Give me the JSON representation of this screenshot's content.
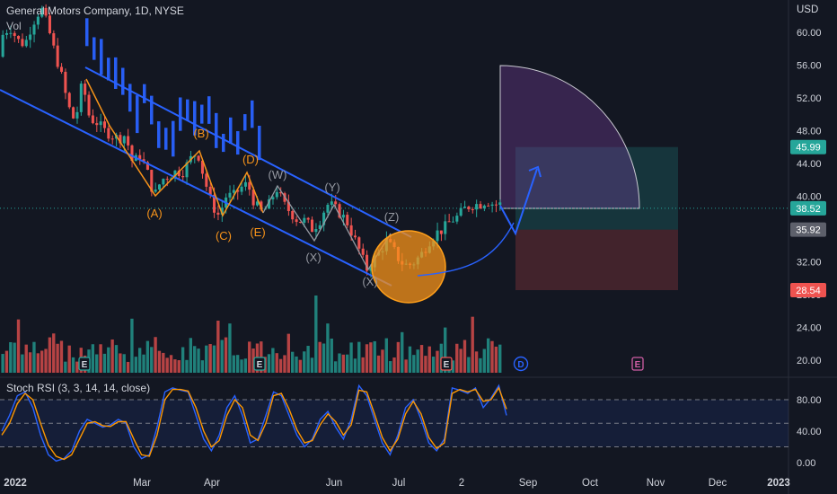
{
  "header": {
    "title": "General Motors Company, 1D, NYSE",
    "volume_label": "Vol",
    "currency": "USD"
  },
  "chart_data": [
    {
      "type": "candlestick",
      "title": "General Motors Company, 1D, NYSE",
      "y_unit": "USD",
      "ylim": [
        17.5,
        64
      ],
      "y_ticks": [
        20.0,
        24.0,
        28.0,
        32.0,
        36.0,
        40.0,
        44.0,
        48.0,
        52.0,
        56.0,
        60.0
      ],
      "x_ticks": [
        "2022",
        "Mar",
        "Apr",
        "Jun",
        "Jul",
        "2",
        "Sep",
        "Oct",
        "Nov",
        "Dec",
        "2023"
      ],
      "price_path": [
        [
          0,
          57
        ],
        [
          6,
          60
        ],
        [
          14,
          60.5
        ],
        [
          22,
          59
        ],
        [
          30,
          58.5
        ],
        [
          38,
          61
        ],
        [
          48,
          63
        ],
        [
          56,
          60.5
        ],
        [
          62,
          58
        ],
        [
          70,
          55
        ],
        [
          78,
          51
        ],
        [
          86,
          49
        ],
        [
          94,
          54
        ],
        [
          102,
          49.5
        ],
        [
          110,
          49
        ],
        [
          118,
          48
        ],
        [
          126,
          47.5
        ],
        [
          134,
          47
        ],
        [
          142,
          47.5
        ],
        [
          150,
          44
        ],
        [
          158,
          45
        ],
        [
          166,
          43
        ],
        [
          174,
          40
        ],
        [
          182,
          42
        ],
        [
          190,
          42.5
        ],
        [
          198,
          43
        ],
        [
          206,
          43
        ],
        [
          214,
          44.5
        ],
        [
          222,
          45.5
        ],
        [
          230,
          42
        ],
        [
          238,
          39
        ],
        [
          246,
          37.6
        ],
        [
          254,
          40
        ],
        [
          262,
          40
        ],
        [
          270,
          41
        ],
        [
          278,
          41.5
        ],
        [
          286,
          39
        ],
        [
          294,
          38
        ],
        [
          302,
          39
        ],
        [
          310,
          41
        ],
        [
          318,
          39
        ],
        [
          326,
          38
        ],
        [
          334,
          37
        ],
        [
          342,
          37
        ],
        [
          350,
          36
        ],
        [
          358,
          37
        ],
        [
          366,
          39
        ],
        [
          372,
          38.8
        ],
        [
          380,
          38
        ],
        [
          388,
          37
        ],
        [
          396,
          35
        ],
        [
          404,
          33
        ],
        [
          410,
          31
        ],
        [
          416,
          32
        ],
        [
          424,
          33
        ],
        [
          432,
          34.5
        ],
        [
          440,
          33.5
        ],
        [
          448,
          32
        ],
        [
          456,
          31.5
        ],
        [
          464,
          32
        ],
        [
          472,
          33
        ],
        [
          480,
          34.5
        ],
        [
          488,
          35.5
        ],
        [
          496,
          36
        ],
        [
          504,
          37
        ],
        [
          512,
          37.5
        ],
        [
          520,
          38.5
        ],
        [
          528,
          39
        ],
        [
          536,
          39
        ],
        [
          544,
          39.5
        ],
        [
          552,
          39
        ],
        [
          560,
          39
        ]
      ],
      "candle_days": 128,
      "labels": {
        "price_tags": [
          45.99,
          38.52,
          35.92,
          28.54
        ],
        "current_price": 38.52
      }
    },
    {
      "type": "line",
      "title": "Stoch RSI (3, 3, 14, 14, close)",
      "ylim": [
        -8,
        110
      ],
      "y_ticks": [
        0.0,
        40.0,
        80.0
      ],
      "bands": {
        "upper": 80,
        "middle": 50,
        "lower": 20
      },
      "series": [
        {
          "color": "#2962ff",
          "values": [
            40,
            60,
            85,
            90,
            70,
            35,
            10,
            2,
            5,
            15,
            40,
            55,
            50,
            45,
            48,
            55,
            50,
            20,
            5,
            10,
            45,
            90,
            95,
            92,
            90,
            60,
            30,
            15,
            35,
            70,
            85,
            60,
            25,
            30,
            60,
            90,
            85,
            60,
            35,
            20,
            30,
            55,
            65,
            45,
            30,
            55,
            98,
            85,
            55,
            25,
            10,
            35,
            70,
            80,
            55,
            25,
            15,
            30,
            95,
            92,
            88,
            95,
            70,
            82,
            98,
            60
          ]
        },
        {
          "color": "#ff9800",
          "values": [
            35,
            50,
            75,
            88,
            80,
            50,
            22,
            8,
            4,
            10,
            30,
            50,
            52,
            47,
            46,
            52,
            52,
            30,
            10,
            8,
            35,
            80,
            93,
            93,
            91,
            70,
            40,
            20,
            28,
            60,
            80,
            70,
            35,
            28,
            50,
            85,
            88,
            68,
            42,
            25,
            28,
            48,
            62,
            52,
            35,
            48,
            92,
            90,
            62,
            32,
            15,
            30,
            62,
            78,
            62,
            32,
            18,
            25,
            88,
            93,
            90,
            93,
            78,
            80,
            95,
            68
          ]
        }
      ]
    }
  ],
  "x_axis": {
    "ticks": [
      "2022",
      "Mar",
      "Apr",
      "Jun",
      "Jul",
      "2",
      "Sep",
      "Oct",
      "Nov",
      "Dec",
      "2023"
    ]
  },
  "price_axis": {
    "ticks": [
      "60.00",
      "56.00",
      "52.00",
      "48.00",
      "44.00",
      "40.00",
      "36.00",
      "32.00",
      "28.00",
      "24.00",
      "20.00"
    ]
  },
  "price_tags": {
    "target": "45.99",
    "last": "38.52",
    "entry": "35.92",
    "stop": "28.54"
  },
  "waves": {
    "orange": [
      "(A)",
      "(B)",
      "(C)",
      "(D)",
      "(E)"
    ],
    "grey": [
      "(W)",
      "(X)",
      "(Y)",
      "(X)",
      "(Z)"
    ]
  },
  "events": {
    "earnings": "E",
    "dividend": "D"
  },
  "stoch_rsi": {
    "label": "Stoch RSI (3, 3, 14, 14, close)",
    "ticks": [
      "80.00",
      "40.00",
      "0.00"
    ]
  },
  "colors": {
    "background": "#131722",
    "up_candle": "#26a69a",
    "down_candle": "#ef5350",
    "channel": "#2962ff",
    "wave_orange": "#f7931a",
    "wave_grey": "#9598a1",
    "stoch_k": "#2962ff",
    "stoch_d": "#ff9800",
    "target_zone": "#26a69a",
    "stop_zone": "#ef5350"
  }
}
